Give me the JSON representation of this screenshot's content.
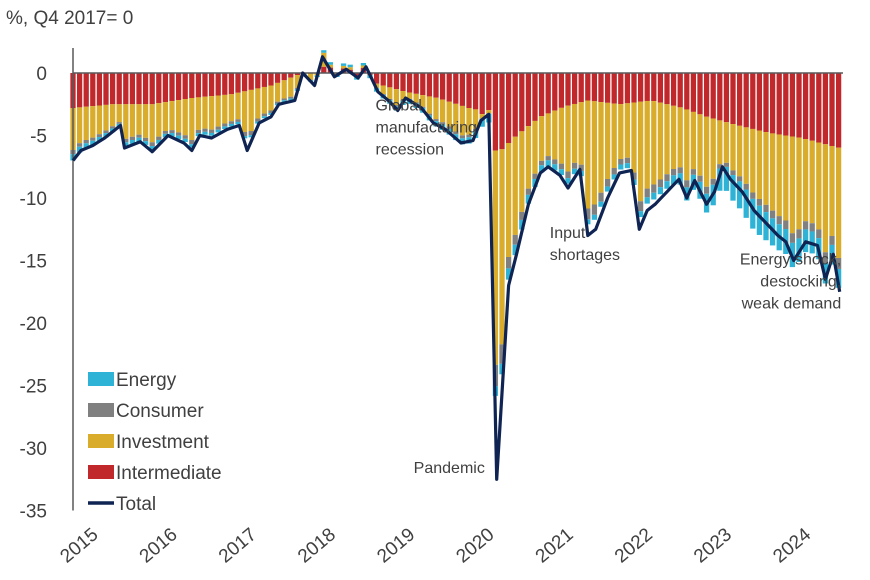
{
  "chart_data": {
    "type": "bar",
    "unit_label": "%, Q4 2017= 0",
    "ylim": [
      -35,
      2
    ],
    "y_ticks": [
      0,
      -5,
      -10,
      -15,
      -20,
      -25,
      -30,
      -35
    ],
    "x_ticks": [
      "2015",
      "2016",
      "2017",
      "2018",
      "2019",
      "2020",
      "2021",
      "2022",
      "2023",
      "2024"
    ],
    "x_range": [
      2015.0,
      2024.75
    ],
    "legend_position": "bottom-left",
    "series": [
      {
        "name": "Energy",
        "color": "#2eb3d6"
      },
      {
        "name": "Consumer",
        "color": "#808080"
      },
      {
        "name": "Investment",
        "color": "#d9ad2b"
      },
      {
        "name": "Intermediate",
        "color": "#c0282c"
      },
      {
        "name": "Total",
        "color": "#0f2452"
      }
    ],
    "total_anchors": [
      [
        2015.0,
        -7.0
      ],
      [
        2015.1,
        -6.2
      ],
      [
        2015.25,
        -5.8
      ],
      [
        2015.4,
        -5.2
      ],
      [
        2015.6,
        -4.2
      ],
      [
        2015.65,
        -6.0
      ],
      [
        2015.85,
        -5.5
      ],
      [
        2016.0,
        -6.3
      ],
      [
        2016.2,
        -5.0
      ],
      [
        2016.4,
        -5.6
      ],
      [
        2016.5,
        -6.2
      ],
      [
        2016.6,
        -5.0
      ],
      [
        2016.75,
        -5.2
      ],
      [
        2016.95,
        -4.5
      ],
      [
        2017.1,
        -4.2
      ],
      [
        2017.2,
        -6.2
      ],
      [
        2017.35,
        -4.0
      ],
      [
        2017.5,
        -3.5
      ],
      [
        2017.6,
        -2.5
      ],
      [
        2017.8,
        -2.2
      ],
      [
        2017.9,
        0.0
      ],
      [
        2018.05,
        -1.0
      ],
      [
        2018.15,
        1.3
      ],
      [
        2018.3,
        -0.3
      ],
      [
        2018.45,
        0.3
      ],
      [
        2018.6,
        -0.4
      ],
      [
        2018.7,
        0.5
      ],
      [
        2018.85,
        -1.5
      ],
      [
        2019.0,
        -2.3
      ],
      [
        2019.1,
        -3.0
      ],
      [
        2019.2,
        -2.0
      ],
      [
        2019.4,
        -2.8
      ],
      [
        2019.55,
        -4.0
      ],
      [
        2019.7,
        -4.5
      ],
      [
        2019.9,
        -5.6
      ],
      [
        2020.05,
        -5.4
      ],
      [
        2020.15,
        -3.8
      ],
      [
        2020.25,
        -3.3
      ],
      [
        2020.35,
        -32.5
      ],
      [
        2020.5,
        -17.0
      ],
      [
        2020.6,
        -14.5
      ],
      [
        2020.75,
        -10.5
      ],
      [
        2020.9,
        -8.0
      ],
      [
        2021.0,
        -7.5
      ],
      [
        2021.15,
        -8.2
      ],
      [
        2021.25,
        -9.2
      ],
      [
        2021.4,
        -7.7
      ],
      [
        2021.5,
        -13.0
      ],
      [
        2021.6,
        -12.5
      ],
      [
        2021.75,
        -10.0
      ],
      [
        2021.9,
        -8.0
      ],
      [
        2022.05,
        -7.8
      ],
      [
        2022.15,
        -12.5
      ],
      [
        2022.25,
        -11.0
      ],
      [
        2022.35,
        -10.5
      ],
      [
        2022.5,
        -9.5
      ],
      [
        2022.65,
        -8.5
      ],
      [
        2022.75,
        -10.0
      ],
      [
        2022.85,
        -8.6
      ],
      [
        2023.0,
        -10.5
      ],
      [
        2023.1,
        -9.5
      ],
      [
        2023.2,
        -7.5
      ],
      [
        2023.3,
        -8.5
      ],
      [
        2023.45,
        -9.5
      ],
      [
        2023.6,
        -11.0
      ],
      [
        2023.75,
        -12.0
      ],
      [
        2023.9,
        -13.0
      ],
      [
        2024.0,
        -13.5
      ],
      [
        2024.1,
        -15.0
      ],
      [
        2024.25,
        -13.5
      ],
      [
        2024.4,
        -13.8
      ],
      [
        2024.5,
        -16.5
      ],
      [
        2024.6,
        -14.5
      ],
      [
        2024.68,
        -17.5
      ]
    ],
    "intermediate_anchors": [
      [
        2015.0,
        -2.8
      ],
      [
        2015.5,
        -2.5
      ],
      [
        2016.0,
        -2.5
      ],
      [
        2016.5,
        -2.0
      ],
      [
        2017.0,
        -1.7
      ],
      [
        2017.5,
        -1.0
      ],
      [
        2017.9,
        0.0
      ],
      [
        2018.3,
        0.0
      ],
      [
        2018.8,
        -0.8
      ],
      [
        2019.2,
        -1.5
      ],
      [
        2019.6,
        -2.0
      ],
      [
        2020.0,
        -2.8
      ],
      [
        2020.15,
        -3.0
      ],
      [
        2020.35,
        -6.5
      ],
      [
        2020.6,
        -5.0
      ],
      [
        2020.9,
        -3.5
      ],
      [
        2021.2,
        -2.7
      ],
      [
        2021.5,
        -2.2
      ],
      [
        2021.9,
        -2.5
      ],
      [
        2022.3,
        -2.2
      ],
      [
        2022.7,
        -2.8
      ],
      [
        2023.0,
        -3.5
      ],
      [
        2023.4,
        -4.2
      ],
      [
        2023.8,
        -4.8
      ],
      [
        2024.2,
        -5.2
      ],
      [
        2024.68,
        -6.0
      ]
    ],
    "investment_share": 0.8,
    "consumer_share": 0.08,
    "energy_anchors": [
      [
        2015.0,
        0.5
      ],
      [
        2015.5,
        0.3
      ],
      [
        2016.0,
        0.3
      ],
      [
        2017.0,
        0.2
      ],
      [
        2018.0,
        0.1
      ],
      [
        2019.0,
        0.3
      ],
      [
        2020.0,
        0.5
      ],
      [
        2020.5,
        0.9
      ],
      [
        2021.0,
        0.5
      ],
      [
        2021.5,
        0.4
      ],
      [
        2022.0,
        0.4
      ],
      [
        2022.5,
        0.6
      ],
      [
        2023.0,
        1.5
      ],
      [
        2023.3,
        2.0
      ],
      [
        2023.6,
        2.4
      ],
      [
        2024.0,
        2.0
      ],
      [
        2024.68,
        1.5
      ]
    ],
    "annotations": [
      {
        "lines": [
          "Global",
          "manufacturing",
          "recession"
        ],
        "at_x": 2018.82,
        "at_y": -3.0,
        "anchor": "start"
      },
      {
        "lines": [
          "Input",
          "shortages"
        ],
        "at_x": 2021.02,
        "at_y": -13.2,
        "anchor": "start"
      },
      {
        "lines": [
          "Energy shock,",
          "destocking,",
          "weak demand"
        ],
        "at_x": 2024.7,
        "at_y": -15.3,
        "anchor": "end"
      },
      {
        "lines": [
          "Pandemic"
        ],
        "at_x": 2020.2,
        "at_y": -32.0,
        "anchor": "end"
      }
    ]
  }
}
